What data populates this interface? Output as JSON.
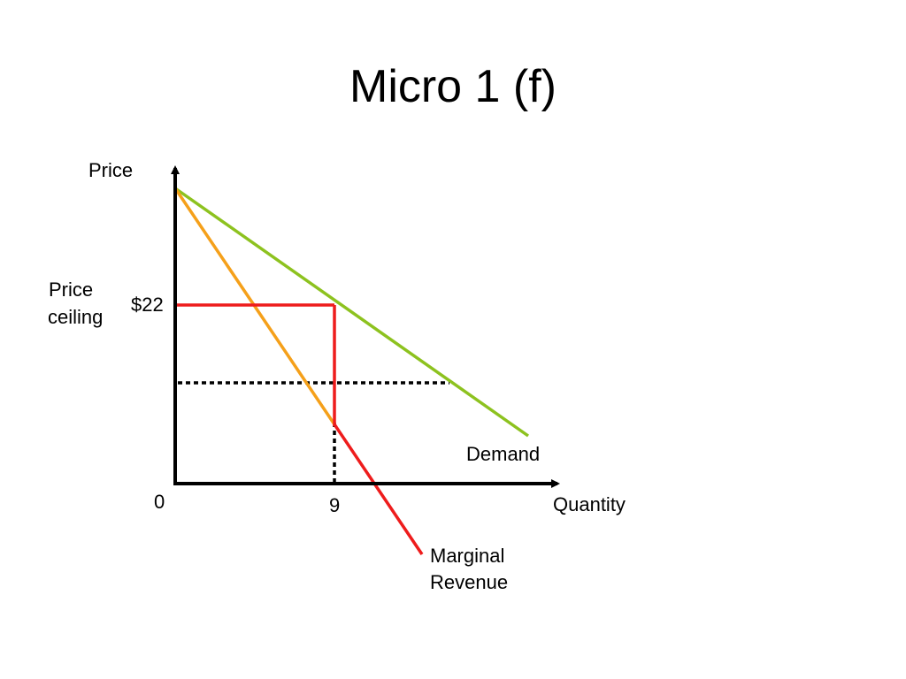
{
  "title": "Micro 1 (f)",
  "axes": {
    "y_label": "Price",
    "x_label": "Quantity",
    "origin_label": "0"
  },
  "price_ceiling": {
    "label_line1": "Price",
    "label_line2": "ceiling",
    "value_label": "$22"
  },
  "quantity_marker": "9",
  "curves": {
    "demand_label": "Demand",
    "mr_label_line1": "Marginal",
    "mr_label_line2": "Revenue"
  },
  "colors": {
    "demand": "#8dc21f",
    "marginal_revenue": "#f5a01a",
    "ceiling_mr": "#ee1c1c",
    "axes": "#000000",
    "dotted_guides": "#000000"
  }
}
